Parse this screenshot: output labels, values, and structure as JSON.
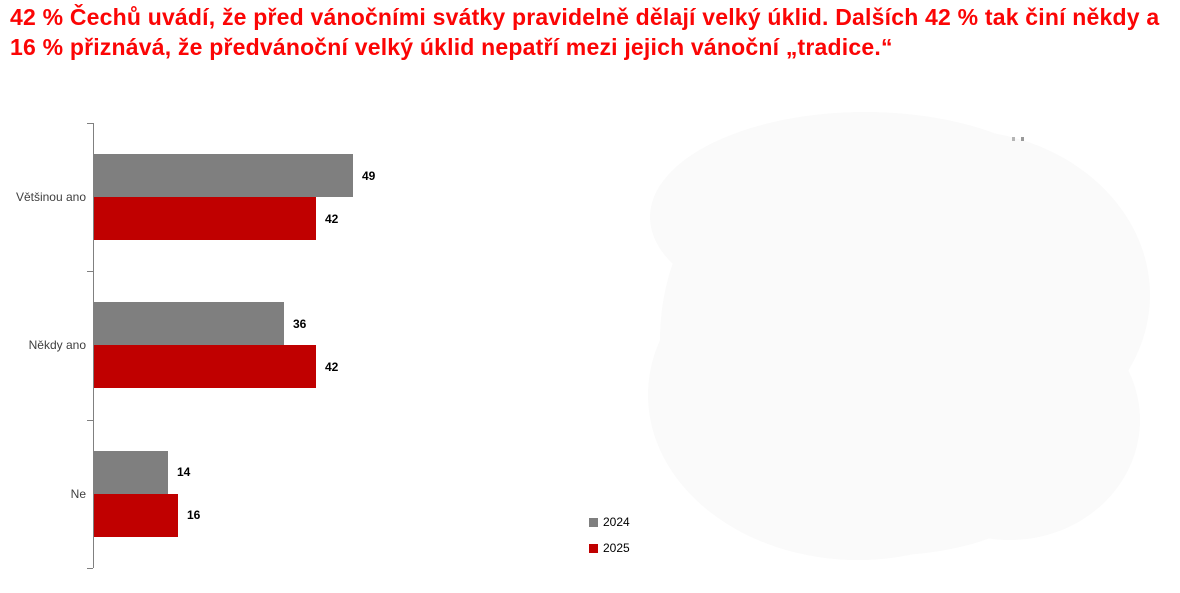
{
  "title": "42 % Čechů uvádí, že před vánočními svátky pravidelně dělají velký úklid. Dalších 42 % tak činí někdy a 16 % přiznává, že předvánoční velký úklid nepatří mezi jejich vánoční „tradice.“",
  "colors": {
    "title": "#fb0505",
    "bar_2024": "#7f7f7f",
    "bar_2025": "#c00000",
    "axis": "#808080",
    "category_label": "#3f3f3f",
    "value_label": "#000000",
    "watermark": "#fafafa"
  },
  "chart_data": {
    "type": "bar",
    "orientation": "horizontal",
    "title": "",
    "xlabel": "",
    "ylabel": "",
    "categories": [
      "Většinou ano",
      "Někdy ano",
      "Ne"
    ],
    "series": [
      {
        "name": "2024",
        "color": "#7f7f7f",
        "values": [
          49,
          36,
          14
        ]
      },
      {
        "name": "2025",
        "color": "#c00000",
        "values": [
          42,
          42,
          16
        ]
      }
    ],
    "xlim": [
      0,
      55
    ],
    "grid": false,
    "value_labels": true,
    "legend_position": "bottom-center"
  },
  "legend": {
    "items": [
      {
        "label": "2024",
        "color": "#7f7f7f"
      },
      {
        "label": "2025",
        "color": "#c00000"
      }
    ]
  }
}
